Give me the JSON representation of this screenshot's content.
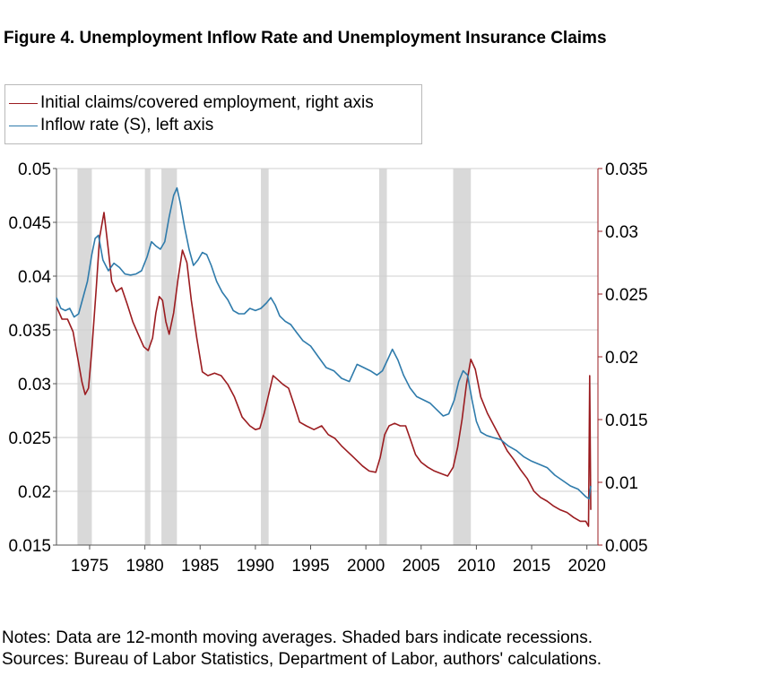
{
  "title": "Figure 4. Unemployment Inflow Rate and Unemployment Insurance Claims",
  "notes": [
    "Notes: Data are 12-month moving averages. Shaded bars indicate recessions.",
    "Sources: Bureau of Labor Statistics, Department of Labor, authors' calculations."
  ],
  "chart_data": {
    "type": "line",
    "legend_placement": "top-left, above plot",
    "grid": true,
    "xlim": [
      1972,
      2021
    ],
    "x_ticks": [
      1975,
      1980,
      1985,
      1990,
      1995,
      2000,
      2005,
      2010,
      2015,
      2020
    ],
    "x_tick_labels": [
      "1975",
      "1980",
      "1985",
      "1990",
      "1995",
      "2000",
      "2005",
      "2010",
      "2015",
      "2020"
    ],
    "y_left": {
      "lim": [
        0.015,
        0.05
      ],
      "ticks": [
        0.015,
        0.02,
        0.025,
        0.03,
        0.035,
        0.04,
        0.045,
        0.05
      ],
      "tick_labels": [
        "0.015",
        "0.02",
        "0.025",
        "0.03",
        "0.035",
        "0.04",
        "0.045",
        "0.05"
      ]
    },
    "y_right": {
      "lim": [
        0.005,
        0.035
      ],
      "ticks": [
        0.005,
        0.01,
        0.015,
        0.02,
        0.025,
        0.03,
        0.035
      ],
      "tick_labels": [
        "0.005",
        "0.01",
        "0.015",
        "0.02",
        "0.025",
        "0.03",
        "0.035"
      ]
    },
    "recessions": [
      [
        1973.9,
        1975.2
      ],
      [
        1980.0,
        1980.5
      ],
      [
        1981.5,
        1982.9
      ],
      [
        1990.5,
        1991.2
      ],
      [
        2001.2,
        2001.9
      ],
      [
        2007.9,
        2009.5
      ]
    ],
    "series": [
      {
        "name": "Initial claims/covered employment, right axis",
        "axis": "right",
        "color": "#9b1c20",
        "x": [
          1972.0,
          1972.5,
          1973.0,
          1973.5,
          1974.0,
          1974.3,
          1974.6,
          1974.9,
          1975.2,
          1975.6,
          1975.9,
          1976.3,
          1976.7,
          1977.0,
          1977.4,
          1977.9,
          1978.4,
          1978.9,
          1979.4,
          1979.9,
          1980.3,
          1980.7,
          1981.0,
          1981.3,
          1981.6,
          1981.9,
          1982.2,
          1982.6,
          1983.0,
          1983.4,
          1983.8,
          1984.2,
          1984.7,
          1985.2,
          1985.7,
          1986.3,
          1986.9,
          1987.5,
          1988.1,
          1988.8,
          1989.5,
          1990.0,
          1990.4,
          1990.8,
          1991.2,
          1991.6,
          1992.0,
          1992.5,
          1993.0,
          1993.5,
          1994.0,
          1994.6,
          1995.3,
          1996.0,
          1996.6,
          1997.2,
          1997.8,
          1998.4,
          1999.0,
          1999.7,
          2000.3,
          2000.9,
          2001.3,
          2001.7,
          2002.1,
          2002.6,
          2003.1,
          2003.6,
          2004.0,
          2004.5,
          2005.0,
          2005.6,
          2006.2,
          2006.8,
          2007.4,
          2007.9,
          2008.3,
          2008.7,
          2009.1,
          2009.5,
          2009.9,
          2010.4,
          2011.0,
          2011.6,
          2012.2,
          2012.8,
          2013.4,
          2014.0,
          2014.6,
          2015.2,
          2015.8,
          2016.4,
          2017.0,
          2017.6,
          2018.2,
          2018.8,
          2019.4,
          2019.9,
          2020.15,
          2020.25,
          2020.35
        ],
        "values": [
          0.024,
          0.023,
          0.023,
          0.022,
          0.0195,
          0.018,
          0.017,
          0.0175,
          0.0205,
          0.0255,
          0.0295,
          0.0315,
          0.0285,
          0.026,
          0.0252,
          0.0255,
          0.0242,
          0.0228,
          0.0218,
          0.0208,
          0.0205,
          0.0215,
          0.0235,
          0.0248,
          0.0245,
          0.0228,
          0.0218,
          0.0235,
          0.0262,
          0.0285,
          0.0275,
          0.0245,
          0.0215,
          0.0188,
          0.0185,
          0.0187,
          0.0185,
          0.0178,
          0.0168,
          0.0152,
          0.0145,
          0.0142,
          0.0143,
          0.0155,
          0.017,
          0.0185,
          0.0182,
          0.0178,
          0.0175,
          0.0162,
          0.0148,
          0.0145,
          0.0142,
          0.0145,
          0.0138,
          0.0135,
          0.0129,
          0.0124,
          0.0119,
          0.0113,
          0.0109,
          0.0108,
          0.012,
          0.0138,
          0.0145,
          0.0147,
          0.0145,
          0.0145,
          0.0135,
          0.0122,
          0.0116,
          0.0112,
          0.0109,
          0.0107,
          0.0105,
          0.0112,
          0.0128,
          0.015,
          0.0178,
          0.0198,
          0.019,
          0.0168,
          0.0155,
          0.0145,
          0.0135,
          0.0125,
          0.0118,
          0.011,
          0.0103,
          0.0093,
          0.0088,
          0.0085,
          0.0081,
          0.0078,
          0.0076,
          0.0072,
          0.0069,
          0.0069,
          0.0065,
          0.0185,
          0.0078
        ]
      },
      {
        "name": "Inflow rate (S), left axis",
        "axis": "left",
        "color": "#2f7bab",
        "x": [
          1972.0,
          1972.4,
          1972.8,
          1973.2,
          1973.6,
          1974.0,
          1974.4,
          1974.8,
          1975.2,
          1975.5,
          1975.8,
          1976.2,
          1976.7,
          1977.2,
          1977.7,
          1978.2,
          1978.7,
          1979.2,
          1979.7,
          1980.2,
          1980.6,
          1981.0,
          1981.4,
          1981.8,
          1982.2,
          1982.6,
          1982.9,
          1983.2,
          1983.6,
          1984.0,
          1984.4,
          1984.8,
          1985.2,
          1985.6,
          1986.0,
          1986.5,
          1987.0,
          1987.5,
          1988.0,
          1988.5,
          1989.0,
          1989.5,
          1990.0,
          1990.5,
          1991.0,
          1991.4,
          1991.8,
          1992.2,
          1992.7,
          1993.2,
          1993.7,
          1994.3,
          1995.0,
          1995.7,
          1996.4,
          1997.1,
          1997.8,
          1998.5,
          1999.2,
          1999.8,
          2000.4,
          2001.0,
          2001.5,
          2002.0,
          2002.4,
          2002.9,
          2003.4,
          2004.0,
          2004.6,
          2005.2,
          2005.8,
          2006.4,
          2007.0,
          2007.5,
          2008.0,
          2008.4,
          2008.8,
          2009.2,
          2009.6,
          2010.0,
          2010.4,
          2010.9,
          2011.5,
          2012.2,
          2012.9,
          2013.6,
          2014.3,
          2015.0,
          2015.7,
          2016.4,
          2017.1,
          2017.8,
          2018.5,
          2019.2,
          2019.9,
          2020.2,
          2020.35
        ],
        "values": [
          0.038,
          0.037,
          0.0368,
          0.037,
          0.0362,
          0.0365,
          0.038,
          0.0395,
          0.042,
          0.0435,
          0.0438,
          0.0415,
          0.0405,
          0.0412,
          0.0408,
          0.0402,
          0.0401,
          0.0402,
          0.0405,
          0.0418,
          0.0432,
          0.0428,
          0.0425,
          0.0432,
          0.0455,
          0.0475,
          0.0482,
          0.0468,
          0.0445,
          0.0425,
          0.041,
          0.0415,
          0.0422,
          0.042,
          0.041,
          0.0395,
          0.0385,
          0.0378,
          0.0368,
          0.0365,
          0.0365,
          0.037,
          0.0368,
          0.037,
          0.0375,
          0.038,
          0.0373,
          0.0363,
          0.0358,
          0.0355,
          0.0348,
          0.034,
          0.0335,
          0.0325,
          0.0315,
          0.0312,
          0.0305,
          0.0302,
          0.0318,
          0.0315,
          0.0312,
          0.0308,
          0.0312,
          0.0323,
          0.0332,
          0.0322,
          0.0308,
          0.0296,
          0.0288,
          0.0285,
          0.0282,
          0.0276,
          0.027,
          0.0272,
          0.0285,
          0.0302,
          0.0312,
          0.0308,
          0.0285,
          0.0265,
          0.0255,
          0.0252,
          0.025,
          0.0248,
          0.0242,
          0.0238,
          0.0232,
          0.0228,
          0.0225,
          0.0222,
          0.0215,
          0.021,
          0.0205,
          0.0202,
          0.0195,
          0.0193,
          0.0205
        ]
      }
    ]
  }
}
